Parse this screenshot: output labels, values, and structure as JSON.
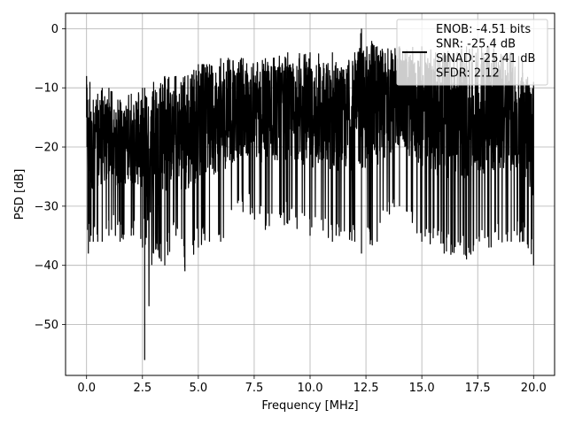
{
  "chart_data": {
    "type": "line",
    "xlabel": "Frequency [MHz]",
    "ylabel": "PSD [dB]",
    "xlim": [
      -0.94,
      20.94
    ],
    "ylim": [
      -58.6,
      2.6
    ],
    "xticks": [
      0.0,
      2.5,
      5.0,
      7.5,
      10.0,
      12.5,
      15.0,
      17.5,
      20.0
    ],
    "xtick_labels": [
      "0.0",
      "2.5",
      "5.0",
      "7.5",
      "10.0",
      "12.5",
      "15.0",
      "17.5",
      "20.0"
    ],
    "yticks": [
      0,
      -10,
      -20,
      -30,
      -40,
      -50
    ],
    "ytick_labels": [
      "0",
      "−10",
      "−20",
      "−30",
      "−40",
      "−50"
    ],
    "grid": true,
    "legend_position": "top-right",
    "legend_lines": [
      "ENOB: -4.51 bits",
      "SNR: -25.4 dB",
      "SINAD: -25.41 dB",
      "SFDR: 2.12"
    ],
    "series_color": "#000000",
    "series": [
      {
        "x": [
          0.0,
          0.02,
          0.05,
          0.08,
          0.1,
          0.15,
          0.2,
          0.3,
          0.5,
          0.7,
          1.0,
          1.5,
          2.0,
          2.5,
          2.6,
          3.0,
          3.5,
          4.0,
          4.4,
          5.0,
          5.5,
          6.0,
          7.0,
          8.0,
          9.0,
          10.0,
          11.0,
          12.0,
          12.3,
          13.0,
          14.0,
          15.0,
          16.0,
          17.0,
          18.0,
          19.0,
          19.5,
          20.0
        ],
        "upper": [
          -8,
          -10,
          -12,
          -15,
          -15,
          -9,
          -14,
          -12,
          -11,
          -10,
          -10,
          -12,
          -11,
          -10,
          -10,
          -9,
          -8,
          -8,
          -8,
          -6,
          -6,
          -5,
          -5,
          -5,
          -4,
          -4,
          -4,
          -4,
          0,
          -3,
          -3,
          -3,
          -4,
          -3,
          -3,
          -4,
          -5,
          -9
        ],
        "lower": [
          -15,
          -20,
          -34,
          -38,
          -33,
          -36,
          -35,
          -36,
          -36,
          -36,
          -35,
          -36,
          -35,
          -37,
          -56,
          -38,
          -40,
          -35,
          -41,
          -37,
          -36,
          -36,
          -31,
          -34,
          -33,
          -35,
          -36,
          -36,
          -38,
          -36,
          -30,
          -36,
          -38,
          -39,
          -37,
          -36,
          -36,
          -40
        ]
      }
    ]
  }
}
